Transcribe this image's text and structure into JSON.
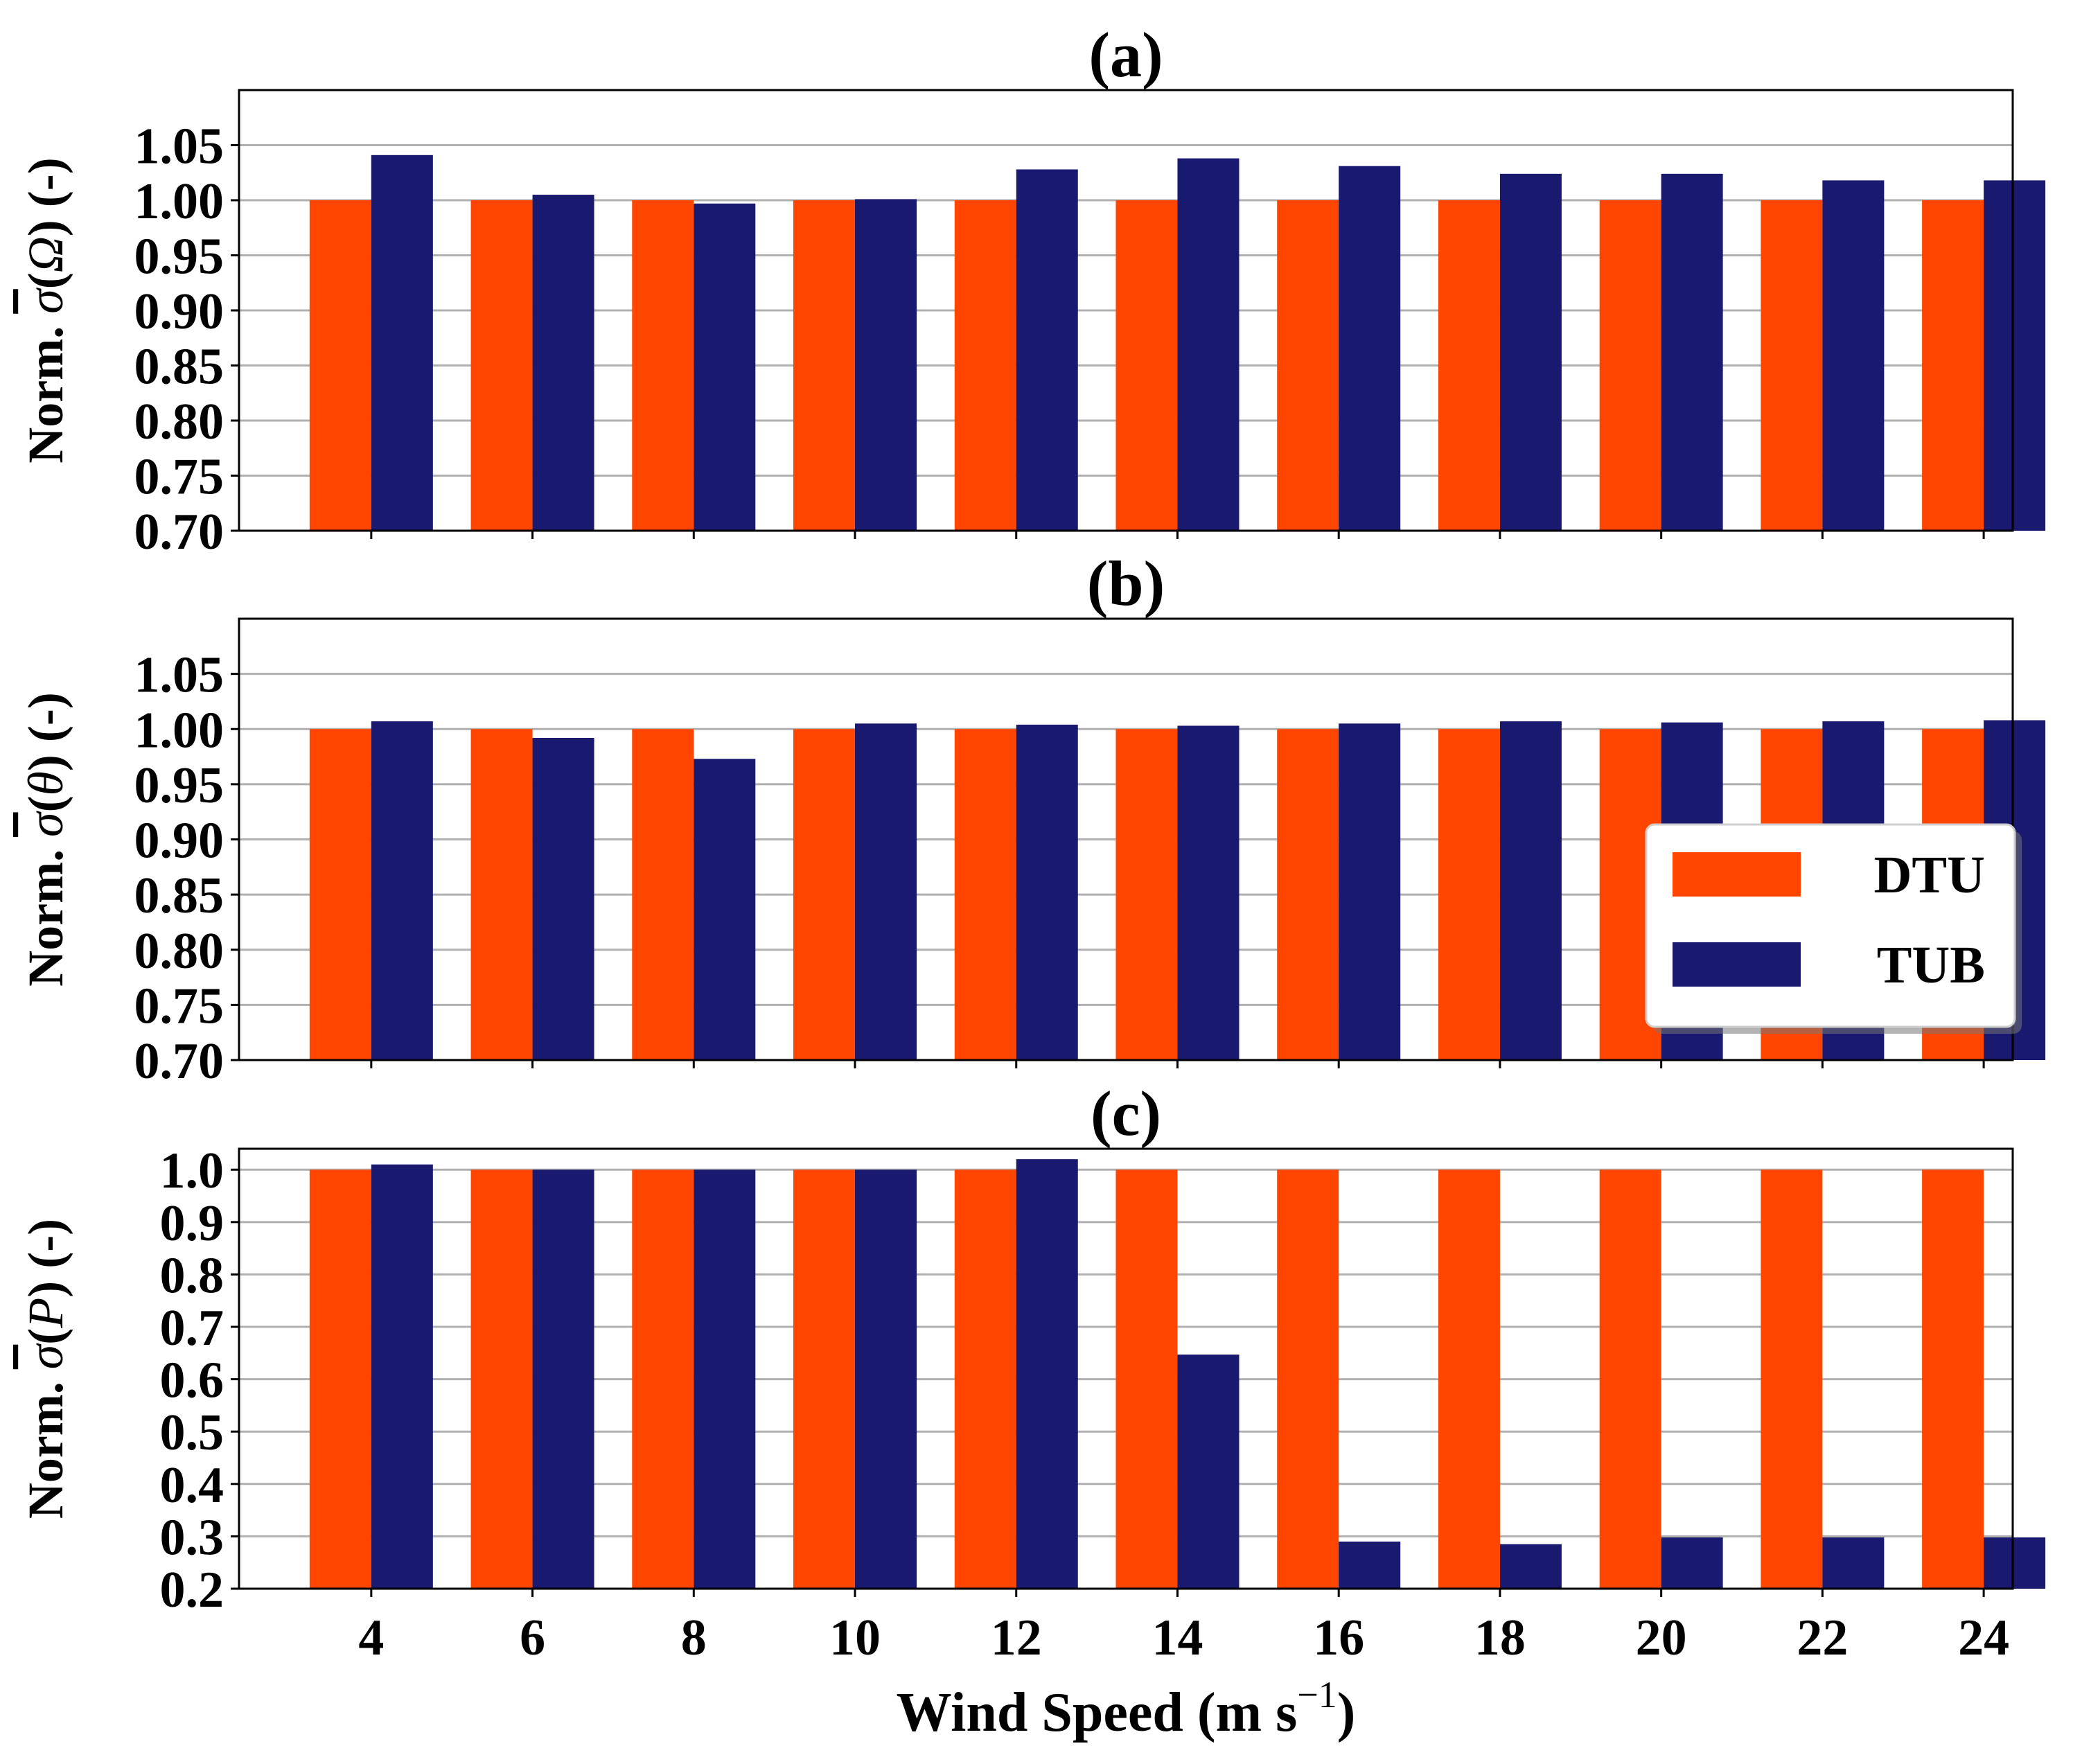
{
  "chart_data": {
    "type": "bar",
    "layout": "3 vertically stacked panels sharing x axis",
    "categories": [
      "4",
      "6",
      "8",
      "10",
      "12",
      "14",
      "16",
      "18",
      "20",
      "22",
      "24"
    ],
    "xlabel": "Wind Speed (m s",
    "xlabel_superscript": "−1",
    "xlabel_close": ")",
    "legend": {
      "placement": "panel (b) right",
      "entries": [
        {
          "name": "DTU",
          "color": "#ff4500"
        },
        {
          "name": "TUB",
          "color": "#191970"
        }
      ]
    },
    "panels": [
      {
        "title": "(a)",
        "ylabel_prefix": "Norm. ",
        "ylabel_sigma": "σ",
        "ylabel_arg_open": "(",
        "ylabel_arg": "Ω",
        "ylabel_arg_close": ")",
        "ylabel_suffix": " (-)",
        "ylim": [
          0.7,
          1.1
        ],
        "yticks": [
          "0.70",
          "0.75",
          "0.80",
          "0.85",
          "0.90",
          "0.95",
          "1.00",
          "1.05"
        ],
        "series": [
          {
            "name": "DTU",
            "values": [
              1.0,
              1.0,
              1.0,
              1.0,
              1.0,
              1.0,
              1.0,
              1.0,
              1.0,
              1.0,
              1.0
            ]
          },
          {
            "name": "TUB",
            "values": [
              1.041,
              1.005,
              0.997,
              1.001,
              1.028,
              1.038,
              1.031,
              1.024,
              1.024,
              1.018,
              1.018
            ]
          }
        ]
      },
      {
        "title": "(b)",
        "ylabel_prefix": "Norm. ",
        "ylabel_sigma": "σ",
        "ylabel_arg_open": "(",
        "ylabel_arg": "θ",
        "ylabel_arg_close": ")",
        "ylabel_suffix": " (-)",
        "ylim": [
          0.7,
          1.1
        ],
        "yticks": [
          "0.70",
          "0.75",
          "0.80",
          "0.85",
          "0.90",
          "0.95",
          "1.00",
          "1.05"
        ],
        "series": [
          {
            "name": "DTU",
            "values": [
              1.0,
              1.0,
              1.0,
              1.0,
              1.0,
              1.0,
              1.0,
              1.0,
              1.0,
              1.0,
              1.0
            ]
          },
          {
            "name": "TUB",
            "values": [
              1.007,
              0.992,
              0.973,
              1.005,
              1.004,
              1.003,
              1.005,
              1.007,
              1.006,
              1.007,
              1.008
            ]
          }
        ]
      },
      {
        "title": "(c)",
        "ylabel_prefix": "Norm. ",
        "ylabel_sigma": "σ",
        "ylabel_arg_open": "(",
        "ylabel_arg": "P",
        "ylabel_arg_close": ")",
        "ylabel_suffix": " (-)",
        "ylim": [
          0.2,
          1.04
        ],
        "yticks": [
          "0.2",
          "0.3",
          "0.4",
          "0.5",
          "0.6",
          "0.7",
          "0.8",
          "0.9",
          "1.0"
        ],
        "series": [
          {
            "name": "DTU",
            "values": [
              1.0,
              1.0,
              1.0,
              1.0,
              1.0,
              1.0,
              1.0,
              1.0,
              1.0,
              1.0,
              1.0
            ]
          },
          {
            "name": "TUB",
            "values": [
              1.01,
              1.0,
              1.0,
              1.0,
              1.02,
              0.647,
              0.29,
              0.285,
              0.298,
              0.298,
              0.298
            ]
          }
        ]
      }
    ]
  }
}
